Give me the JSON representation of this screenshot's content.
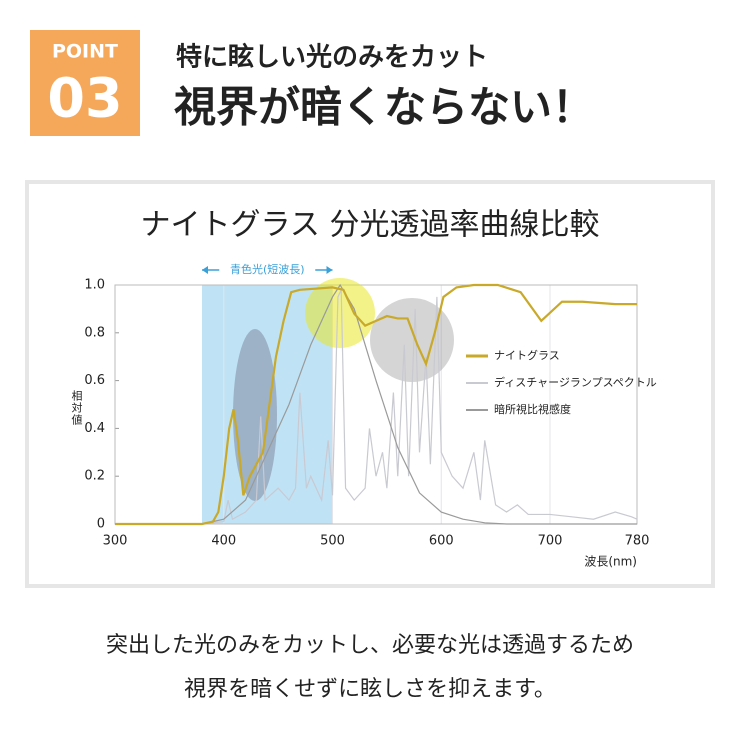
{
  "header": {
    "badge_label": "POINT",
    "badge_number": "03",
    "subtitle": "特に眩しい光のみをカット",
    "title": "視界が暗くならない！"
  },
  "chart_data": {
    "type": "line",
    "title": "ナイトグラス 分光透過率曲線比較",
    "y_label": "相対値",
    "x_label": "波長(nm)",
    "xlim": [
      300,
      780
    ],
    "xticks": [
      300,
      400,
      500,
      600,
      700,
      780
    ],
    "ylim": [
      0,
      1
    ],
    "yticks": [
      0,
      0.2,
      0.4,
      0.6,
      0.8,
      {
        "value": 1,
        "label": "1.0"
      }
    ],
    "grid": "x",
    "legend": "right",
    "highlight": {
      "label": "青色光(短波長)",
      "range": [
        380,
        500
      ],
      "color": "#bfe3f5"
    },
    "series": [
      {
        "name": "ナイトグラス",
        "color": "#c9a92a",
        "x": [
          300,
          380,
          390,
          395,
          400,
          405,
          409,
          413,
          418,
          424,
          430,
          436,
          442,
          448,
          455,
          462,
          470,
          500,
          510,
          520,
          530,
          540,
          550,
          560,
          569,
          578,
          586,
          594,
          602,
          614,
          630,
          652,
          673,
          692,
          711,
          730,
          760,
          780
        ],
        "values": [
          0,
          0,
          0.01,
          0.05,
          0.2,
          0.4,
          0.48,
          0.35,
          0.12,
          0.2,
          0.25,
          0.3,
          0.5,
          0.7,
          0.85,
          0.97,
          0.98,
          0.99,
          0.98,
          0.88,
          0.83,
          0.85,
          0.87,
          0.86,
          0.86,
          0.75,
          0.67,
          0.8,
          0.95,
          0.99,
          1.0,
          1.0,
          0.97,
          0.85,
          0.93,
          0.93,
          0.92,
          0.92
        ]
      },
      {
        "name": "ディスチャージランプスペクトル",
        "color": "#c9c9d2",
        "x": [
          380,
          400,
          404,
          408,
          420,
          430,
          434,
          438,
          450,
          460,
          466,
          470,
          476,
          480,
          490,
          496,
          500,
          505,
          508,
          512,
          520,
          530,
          534,
          540,
          546,
          550,
          556,
          560,
          566,
          570,
          576,
          580,
          586,
          590,
          596,
          600,
          610,
          620,
          630,
          636,
          640,
          650,
          660,
          670,
          680,
          700,
          720,
          740,
          760,
          775,
          780
        ],
        "values": [
          0,
          0.01,
          0.1,
          0.02,
          0.05,
          0.1,
          0.45,
          0.1,
          0.15,
          0.1,
          0.15,
          0.55,
          0.15,
          0.2,
          0.1,
          0.35,
          0.12,
          0.95,
          0.98,
          0.15,
          0.1,
          0.15,
          0.4,
          0.2,
          0.3,
          0.15,
          0.55,
          0.2,
          0.75,
          0.2,
          0.9,
          0.3,
          0.7,
          0.25,
          0.95,
          0.3,
          0.2,
          0.15,
          0.3,
          0.1,
          0.35,
          0.08,
          0.05,
          0.08,
          0.04,
          0.04,
          0.03,
          0.02,
          0.05,
          0.03,
          0.02
        ]
      },
      {
        "name": "暗所視比視感度",
        "color": "#9a9a9a",
        "x": [
          380,
          400,
          420,
          440,
          460,
          480,
          500,
          507,
          520,
          540,
          560,
          580,
          600,
          620,
          640,
          660,
          700,
          780
        ],
        "values": [
          0,
          0.02,
          0.1,
          0.3,
          0.5,
          0.75,
          0.95,
          1.0,
          0.9,
          0.6,
          0.32,
          0.13,
          0.05,
          0.02,
          0.005,
          0,
          0,
          0
        ]
      }
    ]
  },
  "footer": {
    "lines": [
      "突出した光のみをカットし、必要な光は透過するため",
      "視界を暗くせずに眩しさを抑えます。"
    ]
  }
}
